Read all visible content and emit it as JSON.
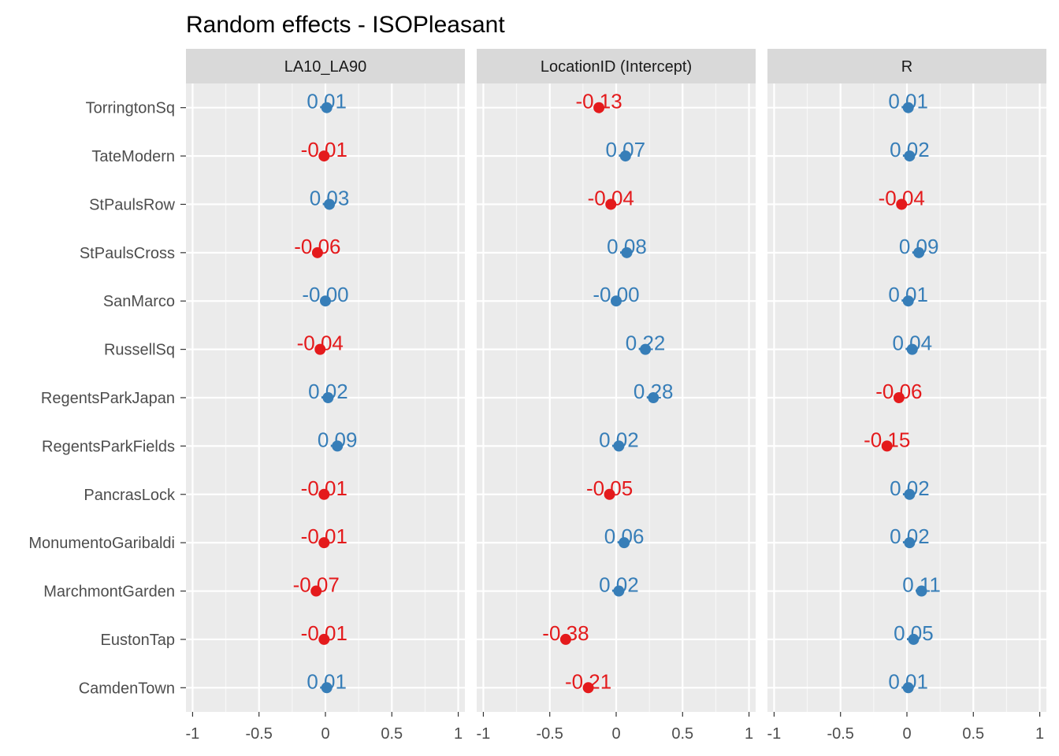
{
  "chart_data": {
    "type": "scatter",
    "title": "Random effects - ISOPleasant",
    "xlim": [
      -1.05,
      1.05
    ],
    "x_ticks": [
      -1,
      -0.5,
      0,
      0.5,
      1
    ],
    "x_tick_labels": [
      "-1",
      "-0.5",
      "0",
      "0.5",
      "1"
    ],
    "grid": true,
    "legend": "none",
    "colors": {
      "positive": "#377eb8",
      "negative": "#e41a1c"
    },
    "categories": [
      "TorringtonSq",
      "TateModern",
      "StPaulsRow",
      "StPaulsCross",
      "SanMarco",
      "RussellSq",
      "RegentsParkJapan",
      "RegentsParkFields",
      "PancrasLock",
      "MonumentoGaribaldi",
      "MarchmontGarden",
      "EustonTap",
      "CamdenTown"
    ],
    "panels": [
      {
        "name": "LA10_LA90",
        "values": [
          0.01,
          -0.01,
          0.03,
          -0.06,
          -0.0,
          -0.04,
          0.02,
          0.09,
          -0.01,
          -0.01,
          -0.07,
          -0.01,
          0.01
        ],
        "labels": [
          "0.01",
          "-0.01",
          "0.03",
          "-0.06",
          "-0.00",
          "-0.04",
          "0.02",
          "0.09",
          "-0.01",
          "-0.01",
          "-0.07",
          "-0.01",
          "0.01"
        ]
      },
      {
        "name": "LocationID (Intercept)",
        "values": [
          -0.13,
          0.07,
          -0.04,
          0.08,
          -0.0,
          0.22,
          0.28,
          0.02,
          -0.05,
          0.06,
          0.02,
          -0.38,
          -0.21
        ],
        "labels": [
          "-0.13",
          "0.07",
          "-0.04",
          "0.08",
          "-0.00",
          "0.22",
          "0.28",
          "0.02",
          "-0.05",
          "0.06",
          "0.02",
          "-0.38",
          "-0.21"
        ]
      },
      {
        "name": "R",
        "values": [
          0.01,
          0.02,
          -0.04,
          0.09,
          0.01,
          0.04,
          -0.06,
          -0.15,
          0.02,
          0.02,
          0.11,
          0.05,
          0.01
        ],
        "labels": [
          "0.01",
          "0.02",
          "-0.04",
          "0.09",
          "0.01",
          "0.04",
          "-0.06",
          "-0.15",
          "0.02",
          "0.02",
          "0.11",
          "0.05",
          "0.01"
        ]
      }
    ]
  }
}
